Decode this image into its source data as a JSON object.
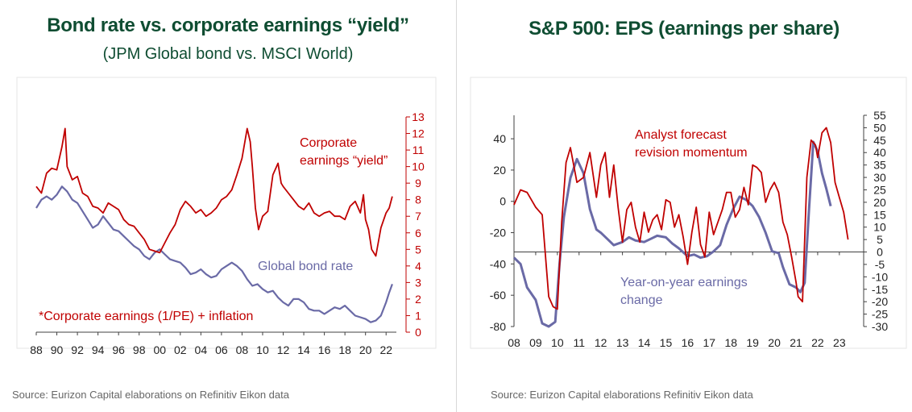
{
  "left": {
    "title": "Bond rate vs. corporate earnings “yield”",
    "subtitle": "(JPM Global bond vs. MSCI World)",
    "source": "Source: Eurizon Capital elaborations on Refinitiv Eikon data"
  },
  "right": {
    "title": "S&P 500: EPS (earnings per share)",
    "source": "Source: Eurizon Capital elaborations Refinitiv  Eikon data"
  },
  "colors": {
    "red": "#c00000",
    "purple": "#6a6aa6",
    "title_green": "#0f4d32"
  },
  "chart_data": [
    {
      "type": "line",
      "title": "Bond rate vs. corporate earnings “yield”",
      "subtitle": "(JPM Global bond vs. MSCI World)",
      "x_tick_labels": [
        "88",
        "90",
        "92",
        "94",
        "96",
        "98",
        "00",
        "02",
        "04",
        "06",
        "08",
        "10",
        "12",
        "14",
        "16",
        "18",
        "20",
        "22"
      ],
      "x_range": [
        1988,
        2023
      ],
      "y_right_range": [
        0,
        13
      ],
      "y_right_ticks": [
        0,
        1,
        2,
        3,
        4,
        5,
        6,
        7,
        8,
        9,
        10,
        11,
        12,
        13
      ],
      "annotations": {
        "earnings_line1": "Corporate",
        "earnings_line2": "earnings “yield”",
        "bond": "Global bond rate",
        "footnote": "*Corporate earnings (1/PE) + inflation"
      },
      "series": [
        {
          "name": "Corporate earnings “yield”",
          "color": "#c00000",
          "x": [
            1988,
            1988.5,
            1989,
            1989.5,
            1990,
            1990.5,
            1990.8,
            1991,
            1991.5,
            1992,
            1992.5,
            1993,
            1993.5,
            1994,
            1994.5,
            1995,
            1995.5,
            1996,
            1996.5,
            1997,
            1997.5,
            1998,
            1998.5,
            1999,
            1999.5,
            2000,
            2000.5,
            2001,
            2001.5,
            2002,
            2002.5,
            2003,
            2003.5,
            2004,
            2004.5,
            2005,
            2005.5,
            2006,
            2006.5,
            2007,
            2007.5,
            2008,
            2008.5,
            2008.8,
            2009,
            2009.3,
            2009.6,
            2010,
            2010.5,
            2011,
            2011.5,
            2011.8,
            2012,
            2012.5,
            2013,
            2013.5,
            2014,
            2014.5,
            2015,
            2015.5,
            2016,
            2016.5,
            2017,
            2017.5,
            2018,
            2018.5,
            2019,
            2019.5,
            2019.8,
            2020,
            2020.3,
            2020.6,
            2021,
            2021.5,
            2022,
            2022.3,
            2022.6
          ],
          "values": [
            8.8,
            8.4,
            9.6,
            9.9,
            9.8,
            11.2,
            12.3,
            10.0,
            9.2,
            9.4,
            8.4,
            8.2,
            7.6,
            7.5,
            7.2,
            7.8,
            7.6,
            7.4,
            6.8,
            6.5,
            6.4,
            6.0,
            5.6,
            5.0,
            4.9,
            4.8,
            5.4,
            6.0,
            6.5,
            7.4,
            7.9,
            7.6,
            7.2,
            7.4,
            7.0,
            7.2,
            7.5,
            8.0,
            8.2,
            8.6,
            9.5,
            10.5,
            12.3,
            11.5,
            10.0,
            7.5,
            6.2,
            7.0,
            7.3,
            9.5,
            10.2,
            9.0,
            8.8,
            8.4,
            8.0,
            7.6,
            7.4,
            7.8,
            7.2,
            7.0,
            7.2,
            7.3,
            7.0,
            7.0,
            6.8,
            7.6,
            7.9,
            7.2,
            8.3,
            6.8,
            6.2,
            5.0,
            4.6,
            6.3,
            7.2,
            7.5,
            8.2
          ]
        },
        {
          "name": "Global bond rate",
          "color": "#6a6aa6",
          "x": [
            1988,
            1988.5,
            1989,
            1989.5,
            1990,
            1990.5,
            1991,
            1991.5,
            1992,
            1992.5,
            1993,
            1993.5,
            1994,
            1994.5,
            1995,
            1995.5,
            1996,
            1996.5,
            1997,
            1997.5,
            1998,
            1998.5,
            1999,
            1999.5,
            2000,
            2000.5,
            2001,
            2001.5,
            2002,
            2002.5,
            2003,
            2003.5,
            2004,
            2004.5,
            2005,
            2005.5,
            2006,
            2006.5,
            2007,
            2007.5,
            2008,
            2008.5,
            2009,
            2009.5,
            2010,
            2010.5,
            2011,
            2011.5,
            2012,
            2012.5,
            2013,
            2013.5,
            2014,
            2014.5,
            2015,
            2015.5,
            2016,
            2016.5,
            2017,
            2017.5,
            2018,
            2018.5,
            2019,
            2019.5,
            2020,
            2020.5,
            2021,
            2021.5,
            2022,
            2022.3,
            2022.6
          ],
          "values": [
            7.5,
            8.0,
            8.2,
            8.0,
            8.3,
            8.8,
            8.5,
            8.0,
            7.8,
            7.3,
            6.8,
            6.3,
            6.5,
            7.0,
            6.6,
            6.2,
            6.1,
            5.8,
            5.5,
            5.2,
            5.0,
            4.6,
            4.4,
            4.8,
            5.0,
            4.7,
            4.4,
            4.3,
            4.2,
            3.9,
            3.5,
            3.6,
            3.8,
            3.5,
            3.3,
            3.4,
            3.8,
            4.0,
            4.2,
            4.0,
            3.7,
            3.2,
            2.8,
            2.9,
            2.6,
            2.4,
            2.5,
            2.1,
            1.8,
            1.6,
            2.0,
            2.0,
            1.8,
            1.4,
            1.3,
            1.3,
            1.1,
            1.3,
            1.5,
            1.4,
            1.6,
            1.3,
            1.0,
            0.9,
            0.8,
            0.6,
            0.7,
            1.0,
            1.8,
            2.4,
            2.9
          ]
        }
      ]
    },
    {
      "type": "line",
      "title": "S&P 500: EPS (earnings per share)",
      "x_tick_labels": [
        "08",
        "09",
        "10",
        "11",
        "12",
        "13",
        "14",
        "15",
        "16",
        "17",
        "18",
        "19",
        "20",
        "21",
        "22",
        "23"
      ],
      "x_range": [
        2008,
        2023.6
      ],
      "y_left_range": [
        -80,
        55
      ],
      "y_left_ticks": [
        -80,
        -60,
        -40,
        -20,
        0,
        20,
        40
      ],
      "y_right_range": [
        -30,
        55
      ],
      "y_right_ticks": [
        -30,
        -25,
        -20,
        -15,
        -10,
        -5,
        0,
        5,
        10,
        15,
        20,
        25,
        30,
        35,
        40,
        45,
        50,
        55
      ],
      "annotations": {
        "forecast_line1": "Analyst forecast",
        "forecast_line2": "revision momentum",
        "yoy_line1": "Year-on-year earnings",
        "yoy_line2": "change"
      },
      "series": [
        {
          "name": "Analyst forecast revision momentum",
          "axis": "right",
          "color": "#c00000",
          "x": [
            2008,
            2008.3,
            2008.6,
            2009,
            2009.3,
            2009.6,
            2009.8,
            2010,
            2010.2,
            2010.4,
            2010.6,
            2010.9,
            2011.2,
            2011.5,
            2011.8,
            2012,
            2012.2,
            2012.4,
            2012.6,
            2012.8,
            2013,
            2013.2,
            2013.4,
            2013.6,
            2013.8,
            2014,
            2014.2,
            2014.4,
            2014.6,
            2014.8,
            2015,
            2015.2,
            2015.4,
            2015.6,
            2015.8,
            2016,
            2016.2,
            2016.4,
            2016.6,
            2016.8,
            2017,
            2017.2,
            2017.4,
            2017.6,
            2017.8,
            2018,
            2018.2,
            2018.4,
            2018.6,
            2018.8,
            2019,
            2019.2,
            2019.4,
            2019.6,
            2019.8,
            2020,
            2020.2,
            2020.4,
            2020.6,
            2020.8,
            2021,
            2021.1,
            2021.3,
            2021.5,
            2021.7,
            2021.9,
            2022,
            2022.2,
            2022.4,
            2022.6,
            2022.8,
            2023,
            2023.2,
            2023.4
          ],
          "values": [
            19,
            25,
            24,
            18,
            15,
            -18,
            -22,
            -23,
            12,
            36,
            42,
            28,
            30,
            40,
            22,
            35,
            40,
            22,
            35,
            18,
            4,
            17,
            20,
            10,
            4,
            16,
            8,
            13,
            15,
            9,
            21,
            20,
            10,
            15,
            6,
            -5,
            8,
            18,
            3,
            -2,
            16,
            7,
            12,
            17,
            24,
            24,
            14,
            17,
            26,
            19,
            35,
            34,
            32,
            20,
            25,
            28,
            24,
            12,
            7,
            -2,
            -12,
            -18,
            -20,
            30,
            45,
            43,
            38,
            48,
            50,
            44,
            28,
            22,
            16,
            5
          ]
        },
        {
          "name": "Year-on-year earnings change",
          "axis": "left",
          "color": "#6a6aa6",
          "x": [
            2008,
            2008.3,
            2008.6,
            2009,
            2009.3,
            2009.6,
            2009.9,
            2010.1,
            2010.3,
            2010.6,
            2010.9,
            2011.2,
            2011.5,
            2011.8,
            2012,
            2012.3,
            2012.6,
            2013,
            2013.3,
            2013.6,
            2014,
            2014.3,
            2014.6,
            2015,
            2015.3,
            2015.6,
            2016,
            2016.3,
            2016.6,
            2016.9,
            2017.2,
            2017.5,
            2017.8,
            2018.1,
            2018.4,
            2018.7,
            2019,
            2019.3,
            2019.6,
            2019.9,
            2020.2,
            2020.4,
            2020.7,
            2021,
            2021.2,
            2021.4,
            2021.6,
            2021.8,
            2022,
            2022.2,
            2022.4,
            2022.6
          ],
          "values": [
            -36,
            -40,
            -55,
            -63,
            -78,
            -80,
            -77,
            -40,
            -10,
            15,
            27,
            18,
            -5,
            -18,
            -20,
            -24,
            -28,
            -26,
            -23,
            -25,
            -26,
            -24,
            -22,
            -23,
            -27,
            -30,
            -35,
            -34,
            -36,
            -35,
            -32,
            -28,
            -15,
            -5,
            3,
            1,
            -3,
            -10,
            -20,
            -32,
            -33,
            -42,
            -53,
            -55,
            -58,
            -52,
            -5,
            38,
            32,
            18,
            8,
            -3
          ]
        }
      ]
    }
  ]
}
